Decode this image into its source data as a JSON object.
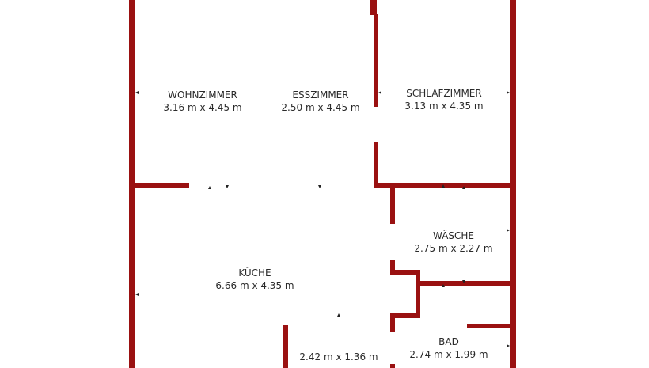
{
  "colors": {
    "wall": "#9a1111",
    "text": "#2a2a2a",
    "background": "#ffffff"
  },
  "rooms": [
    {
      "name": "WOHNZIMMER",
      "size": "3.16 m x 4.45 m"
    },
    {
      "name": "ESSZIMMER",
      "size": "2.50 m x 4.45 m"
    },
    {
      "name": "SCHLAFZIMMER",
      "size": "3.13 m x 4.35 m"
    },
    {
      "name": "WÄSCHE",
      "size": "2.75 m x 2.27 m"
    },
    {
      "name": "KÜCHE",
      "size": "6.66 m x 4.35 m"
    },
    {
      "name": "BAD",
      "size": "2.74 m x 1.99 m"
    },
    {
      "name": "",
      "size": "2.42 m x 1.36 m"
    }
  ]
}
